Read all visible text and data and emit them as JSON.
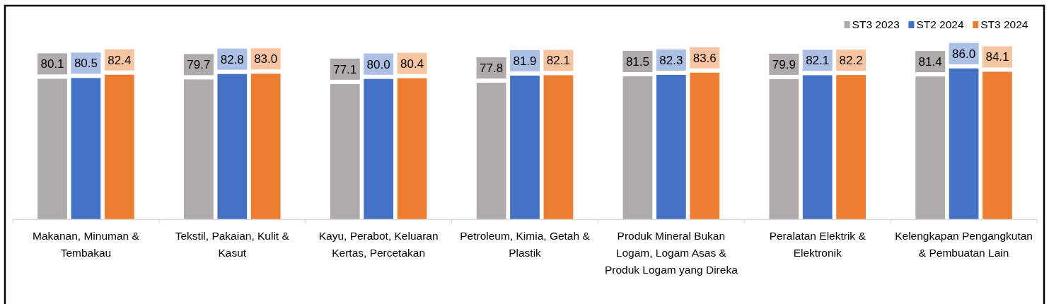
{
  "chart_data": {
    "type": "bar",
    "categories": [
      "Makanan, Minuman & Tembakau",
      "Tekstil, Pakaian, Kulit & Kasut",
      "Kayu, Perabot, Keluaran Kertas, Percetakan",
      "Petroleum, Kimia, Getah & Plastik",
      "Produk Mineral Bukan Logam, Logam Asas & Produk Logam yang Direka",
      "Peralatan Elektrik & Elektronik",
      "Kelengkapan Pengangkutan & Pembuatan Lain"
    ],
    "series": [
      {
        "name": "ST3 2023",
        "color": "#afabab",
        "values": [
          80.1,
          79.7,
          77.1,
          77.8,
          81.5,
          79.9,
          81.4
        ],
        "value_labels": [
          "80.1",
          "79.7",
          "77.1",
          "77.8",
          "81.5",
          "79.9",
          "81.4"
        ]
      },
      {
        "name": "ST2 2024",
        "color": "#4472c4",
        "values": [
          80.5,
          82.8,
          80.0,
          81.9,
          82.3,
          82.1,
          86.0
        ],
        "value_labels": [
          "80.5",
          "82.8",
          "80.0",
          "81.9",
          "82.3",
          "82.1",
          "86.0"
        ]
      },
      {
        "name": "ST3 2024",
        "color": "#ed7d31",
        "values": [
          82.4,
          83.0,
          80.4,
          82.1,
          83.6,
          82.2,
          84.1
        ],
        "value_labels": [
          "82.4",
          "83.0",
          "80.4",
          "82.1",
          "83.6",
          "82.2",
          "84.1"
        ]
      }
    ],
    "legend": "top right"
  }
}
